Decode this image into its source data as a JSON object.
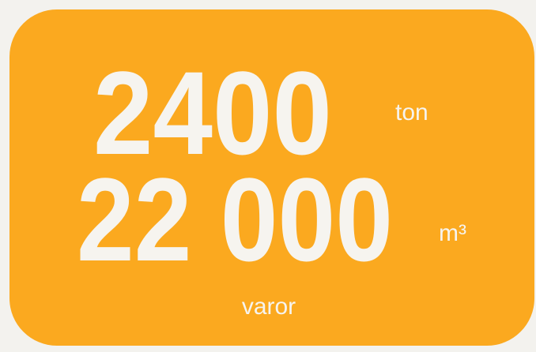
{
  "stats": [
    {
      "value": "2400",
      "unit": "ton"
    },
    {
      "value": "22 000",
      "unit": "m³"
    }
  ],
  "caption": "varor"
}
